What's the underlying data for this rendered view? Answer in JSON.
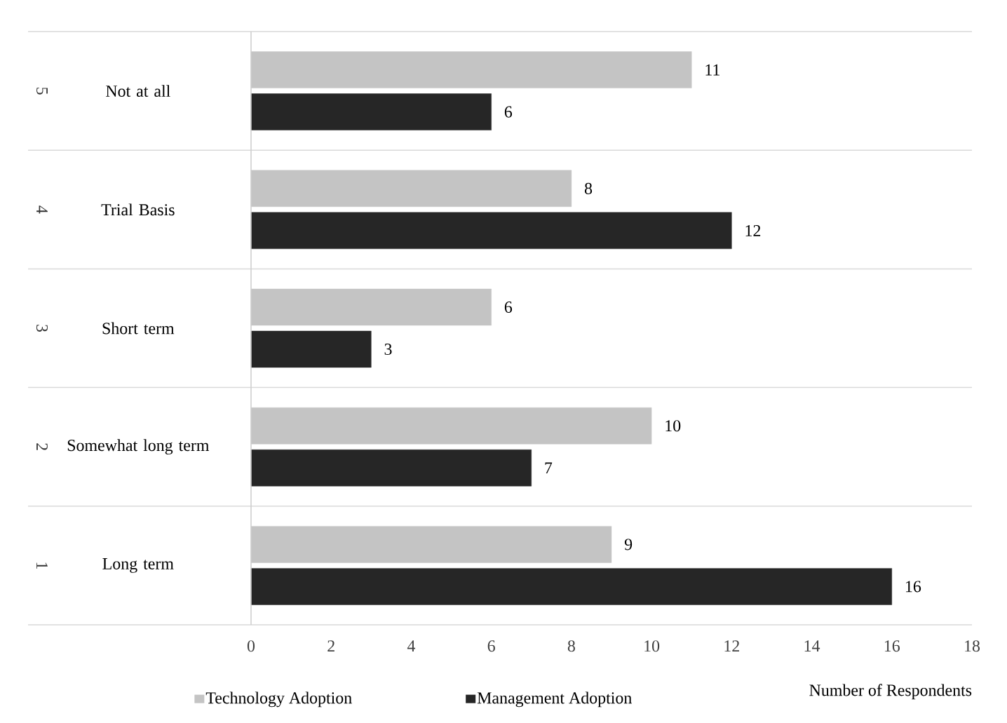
{
  "chart_data": {
    "type": "bar",
    "orientation": "horizontal",
    "categories": [
      "Not at all",
      "Trial Basis",
      "Short term",
      "Somewhat long term",
      "Long term"
    ],
    "annotations": [
      "5",
      "4",
      "3",
      "2",
      "1"
    ],
    "series": [
      {
        "name": "Technology Adoption",
        "color": "#c4c4c4",
        "values": [
          11,
          8,
          6,
          10,
          9
        ]
      },
      {
        "name": "Management Adoption",
        "color": "#262626",
        "values": [
          6,
          12,
          3,
          7,
          16
        ]
      }
    ],
    "xlabel": "Number of Respondents",
    "xlim": [
      0,
      18
    ],
    "xticks": [
      0,
      2,
      4,
      6,
      8,
      10,
      12,
      14,
      16,
      18
    ],
    "data_labels": true,
    "grid": "y",
    "legend": "bottom"
  }
}
